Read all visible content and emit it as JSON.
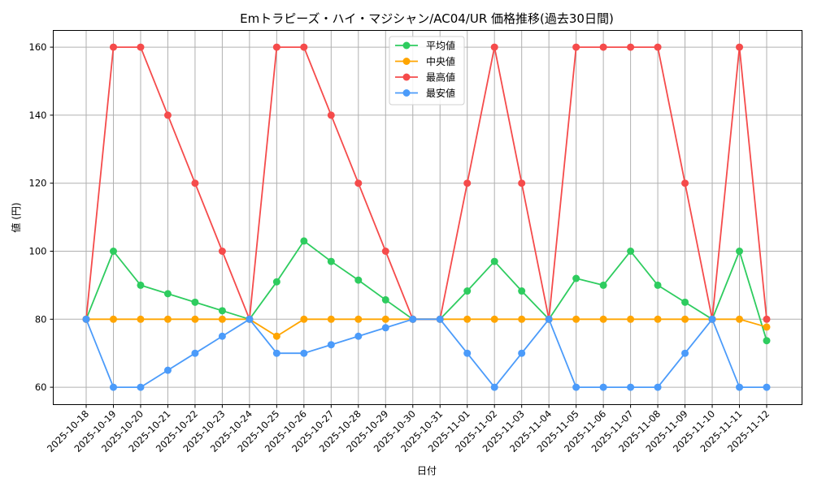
{
  "chart_data": {
    "type": "line",
    "title": "Emトラピーズ・ハイ・マジシャン/AC04/UR 価格推移(過去30日間)",
    "xlabel": "日付",
    "ylabel": "値 (円)",
    "ylim": [
      55,
      165
    ],
    "yticks": [
      60,
      80,
      100,
      120,
      140,
      160
    ],
    "grid": true,
    "legend_position": "upper center",
    "categories": [
      "2025-10-18",
      "2025-10-19",
      "2025-10-20",
      "2025-10-21",
      "2025-10-22",
      "2025-10-23",
      "2025-10-24",
      "2025-10-25",
      "2025-10-26",
      "2025-10-27",
      "2025-10-28",
      "2025-10-29",
      "2025-10-30",
      "2025-10-31",
      "2025-11-01",
      "2025-11-02",
      "2025-11-03",
      "2025-11-04",
      "2025-11-05",
      "2025-11-06",
      "2025-11-07",
      "2025-11-08",
      "2025-11-09",
      "2025-11-10",
      "2025-11-11",
      "2025-11-12"
    ],
    "series": [
      {
        "name": "平均値",
        "color": "#2ecc5f",
        "values": [
          80,
          100,
          90,
          87.5,
          85,
          82.5,
          80,
          91,
          103,
          97,
          91.5,
          85.7,
          80,
          80,
          88.3,
          97,
          88.3,
          80,
          92,
          90,
          100,
          90,
          85,
          80,
          100,
          73.7
        ]
      },
      {
        "name": "中央値",
        "color": "#ffa500",
        "values": [
          80,
          80,
          80,
          80,
          80,
          80,
          80,
          75,
          80,
          80,
          80,
          80,
          80,
          80,
          80,
          80,
          80,
          80,
          80,
          80,
          80,
          80,
          80,
          80,
          80,
          77.7
        ]
      },
      {
        "name": "最高値",
        "color": "#f54b4b",
        "values": [
          80,
          160,
          160,
          140,
          120,
          100,
          80,
          160,
          160,
          140,
          120,
          100,
          80,
          80,
          120,
          160,
          120,
          80,
          160,
          160,
          160,
          160,
          120,
          80,
          160,
          80
        ]
      },
      {
        "name": "最安値",
        "color": "#4b9bfa",
        "values": [
          80,
          60,
          60,
          65,
          70,
          75,
          80,
          70,
          70,
          72.5,
          75,
          77.5,
          80,
          80,
          70,
          60,
          70,
          80,
          60,
          60,
          60,
          60,
          70,
          80,
          60,
          60
        ]
      }
    ]
  }
}
